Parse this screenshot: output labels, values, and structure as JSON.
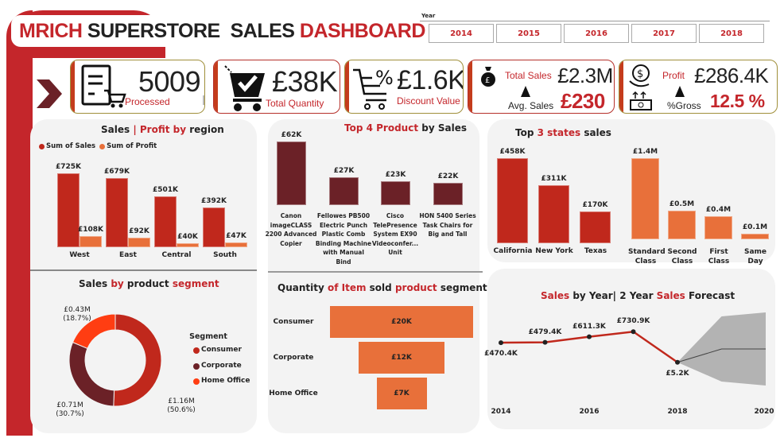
{
  "header": {
    "title_parts": [
      {
        "text": "MRICH ",
        "color": "#c4262b"
      },
      {
        "text": "SUPERSTORE  SALES ",
        "color": "#222222"
      },
      {
        "text": "DASHBOARD",
        "color": "#c4262b"
      }
    ]
  },
  "year_slicer": {
    "label": "Year",
    "options": [
      "2014",
      "2015",
      "2016",
      "2017",
      "2018"
    ]
  },
  "kpis": {
    "orders": {
      "value": "5009",
      "label": "Processed",
      "icon": "order-list-cart-icon"
    },
    "quantity": {
      "value": "£38K",
      "label": "Total Quantity",
      "icon": "cart-check-icon"
    },
    "discount": {
      "value": "£1.6K",
      "label": "Discount Value",
      "icon": "cart-percent-icon"
    },
    "sales": {
      "label": "Total Sales",
      "value": "£2.3M",
      "sub_label": "Avg. Sales",
      "sub_value": "£230",
      "icon": "money-bag-icon"
    },
    "profit": {
      "label": "Profit",
      "value": "£286.4K",
      "sub_label": "%Gross",
      "sub_value": "12.5 %",
      "icon": "dollar-hand-icon"
    }
  },
  "colors": {
    "sales": "#c0281c",
    "profit": "#e8703a",
    "maroon": "#6b2127",
    "home_office": "#ff3d12",
    "accent": "#c4262b"
  },
  "chart_data": [
    {
      "id": "region",
      "type": "bar",
      "title": "Sales | Profit by region",
      "categories": [
        "West",
        "East",
        "Central",
        "South"
      ],
      "series": [
        {
          "name": "Sum of Sales",
          "values": [
            725,
            679,
            501,
            392
          ],
          "labels": [
            "£725K",
            "£679K",
            "£501K",
            "£392K"
          ]
        },
        {
          "name": "Sum of Profit",
          "values": [
            108,
            92,
            40,
            47
          ],
          "labels": [
            "£108K",
            "£92K",
            "£40K",
            "£47K"
          ]
        }
      ],
      "unit": "£K",
      "legend": "top-left"
    },
    {
      "id": "products",
      "type": "bar",
      "title": "Top 4 Product by Sales",
      "categories": [
        "Canon imageCLASS 2200 Advanced Copier",
        "Fellowes PB500 Electric Punch Plastic Comb Binding Machine with Manual Bind",
        "Cisco TelePresence System EX90 Videoconfer... Unit",
        "HON 5400 Series Task Chairs for Big and Tall"
      ],
      "values": [
        62,
        27,
        23,
        22
      ],
      "labels": [
        "£62K",
        "£27K",
        "£23K",
        "£22K"
      ],
      "unit": "£K"
    },
    {
      "id": "states",
      "type": "bar",
      "title": "Top 3 states sales",
      "categories": [
        "California",
        "New York",
        "Texas"
      ],
      "values": [
        458,
        311,
        170
      ],
      "labels": [
        "£458K",
        "£311K",
        "£170K"
      ],
      "unit": "£K"
    },
    {
      "id": "shipmode",
      "type": "bar",
      "categories": [
        "Standard Class",
        "Second Class",
        "First Class",
        "Same Day"
      ],
      "values": [
        1.4,
        0.5,
        0.4,
        0.1
      ],
      "labels": [
        "£1.4M",
        "£0.5M",
        "£0.4M",
        "£0.1M"
      ],
      "unit": "£M"
    },
    {
      "id": "segment",
      "type": "pie",
      "title": "Sales by product segment",
      "legend_title": "Segment",
      "categories": [
        "Consumer",
        "Corporate",
        "Home Office"
      ],
      "values": [
        1.16,
        0.71,
        0.43
      ],
      "percents": [
        50.6,
        30.7,
        18.7
      ],
      "labels": [
        "£1.16M\n(50.6%)",
        "£0.71M\n(30.7%)",
        "£0.43M\n(18.7%)"
      ],
      "legend": "right"
    },
    {
      "id": "quantity",
      "type": "bar",
      "orientation": "horizontal-funnel",
      "title": "Quantity of Item sold product segment",
      "categories": [
        "Consumer",
        "Corporate",
        "Home Office"
      ],
      "values": [
        20,
        12,
        7
      ],
      "labels": [
        "£20K",
        "£12K",
        "£7K"
      ],
      "unit": "K"
    },
    {
      "id": "forecast",
      "type": "line",
      "title": "Sales by Year| 2 Year Sales Forecast",
      "x": [
        2014,
        2015,
        2016,
        2017,
        2018
      ],
      "values": [
        470.4,
        479.4,
        611.3,
        730.9,
        5.2
      ],
      "labels": [
        "£470.4K",
        "£479.4K",
        "£611.3K",
        "£730.9K",
        "£5.2K"
      ],
      "forecast": {
        "x": [
          2018,
          2019,
          2020
        ],
        "mean": [
          5.2,
          320,
          320
        ],
        "upper": [
          5.2,
          1094,
          1189
        ],
        "lower": [
          5.2,
          -453,
          -547
        ]
      },
      "xticks": [
        "2014",
        "2016",
        "2018",
        "2020"
      ],
      "xlim": [
        2014,
        2020
      ],
      "unit": "£K"
    }
  ]
}
